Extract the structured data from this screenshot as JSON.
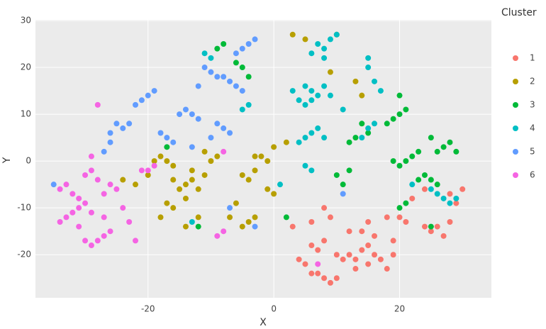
{
  "chart_data": {
    "type": "scatter",
    "x_label": "X",
    "y_label": "Y",
    "legend_title": "Cluster",
    "legend": "right",
    "grid": true,
    "xlim": [
      -37.9,
      34.6
    ],
    "ylim": [
      -29.2,
      30.15
    ],
    "xticks": [
      -20,
      0,
      20
    ],
    "yticks": [
      -20,
      -10,
      0,
      10,
      20,
      30
    ],
    "series": [
      {
        "name": "1",
        "color": "#F8766D",
        "x": [
          12,
          13,
          14,
          15,
          16,
          11,
          13,
          17,
          15,
          10,
          7,
          8,
          9,
          6,
          10,
          5,
          4,
          7,
          6,
          8,
          12,
          14,
          15,
          16,
          18,
          20,
          21,
          19,
          24,
          25,
          26,
          27,
          28,
          28,
          30,
          29,
          8,
          9,
          6,
          3,
          19,
          18,
          22,
          24
        ],
        "values": [
          -20,
          -21,
          -19,
          -22,
          -20,
          -21,
          -23,
          -21,
          -18,
          -20,
          -24,
          -25,
          -26,
          -24,
          -25,
          -22,
          -21,
          -19,
          -18,
          -17,
          -15,
          -15,
          -13,
          -16,
          -12,
          -12,
          -13,
          -17,
          -14,
          -15,
          -14,
          -16,
          -13,
          -7,
          -6,
          -9,
          -10,
          -12,
          -13,
          -14,
          -20,
          -23,
          -8,
          -6
        ]
      },
      {
        "name": "2",
        "color": "#B79F00",
        "x": [
          -14,
          -13,
          -15,
          -12,
          -14,
          -13,
          -16,
          -11,
          -17,
          -18,
          -16,
          -19,
          -10,
          -9,
          -11,
          -5,
          -4,
          -3,
          -2,
          -1,
          0,
          -3,
          -4,
          -3,
          -5,
          -7,
          -16,
          -17,
          -18,
          -14,
          -12,
          -22,
          -20,
          -24,
          0,
          -1,
          3,
          5,
          10,
          13,
          14,
          9,
          -6,
          2
        ],
        "values": [
          -5,
          -4,
          -6,
          -6,
          -8,
          -2,
          -4,
          -3,
          0,
          1,
          -1,
          0,
          0,
          1,
          2,
          -3,
          -4,
          -2,
          1,
          0,
          3,
          1,
          -13,
          -12,
          -14,
          -12,
          -10,
          -9,
          -12,
          -14,
          -12,
          -5,
          -3,
          -4,
          -7,
          -6,
          27,
          26,
          27,
          17,
          14,
          19,
          -9,
          4
        ]
      },
      {
        "name": "3",
        "color": "#00BA38",
        "x": [
          20,
          19,
          21,
          18,
          20,
          27,
          28,
          26,
          25,
          29,
          21,
          22,
          20,
          23,
          19,
          25,
          24,
          26,
          23,
          13,
          15,
          12,
          14,
          10,
          12,
          11,
          -8,
          -9,
          -6,
          -5,
          -4,
          20,
          21,
          25,
          -12,
          -17,
          2
        ],
        "values": [
          10,
          9,
          11,
          8,
          14,
          3,
          4,
          2,
          5,
          2,
          0,
          1,
          -1,
          2,
          0,
          -4,
          -3,
          -5,
          -4,
          5,
          6,
          4,
          8,
          -3,
          -2,
          -5,
          25,
          24,
          21,
          20,
          18,
          -10,
          -9,
          -14,
          -14,
          3,
          -12
        ]
      },
      {
        "name": "4",
        "color": "#00BFC4",
        "x": [
          6,
          5,
          7,
          4,
          8,
          6,
          3,
          9,
          5,
          7,
          8,
          9,
          6,
          10,
          8,
          15,
          16,
          15,
          17,
          6,
          5,
          7,
          8,
          4,
          15,
          14,
          16,
          27,
          26,
          28,
          25,
          29,
          22,
          -10,
          -11,
          -4,
          -5,
          5,
          6,
          -13,
          1,
          11
        ],
        "values": [
          15,
          16,
          14,
          13,
          16,
          13,
          15,
          14,
          12,
          25,
          24,
          26,
          23,
          27,
          22,
          20,
          17,
          22,
          15,
          6,
          5,
          7,
          5,
          4,
          7,
          5,
          8,
          -8,
          -7,
          -9,
          -6,
          -8,
          -5,
          22,
          23,
          12,
          11,
          -1,
          -2,
          -13,
          -5,
          11
        ]
      },
      {
        "name": "5",
        "color": "#619CFF",
        "x": [
          -13,
          -14,
          -12,
          -15,
          -20,
          -21,
          -19,
          -22,
          -8,
          -9,
          -7,
          -10,
          -6,
          -7,
          -5,
          -8,
          -10,
          -11,
          -9,
          -4,
          -5,
          -3,
          -6,
          -25,
          -24,
          -26,
          -17,
          -18,
          -16,
          -13,
          -26,
          -27,
          -23,
          -12,
          -7,
          -35,
          11,
          -3
        ],
        "values": [
          10,
          11,
          9,
          10,
          14,
          13,
          15,
          12,
          7,
          8,
          6,
          5,
          16,
          17,
          15,
          18,
          19,
          20,
          18,
          25,
          24,
          26,
          23,
          8,
          7,
          6,
          5,
          6,
          4,
          3,
          4,
          2,
          8,
          16,
          -10,
          -5,
          -7,
          -14
        ]
      },
      {
        "name": "6",
        "color": "#F564E3",
        "x": [
          -31,
          -32,
          -30,
          -33,
          -29,
          -31,
          -28,
          -29,
          -27,
          -30,
          -26,
          -34,
          -33,
          -32,
          -26,
          -27,
          -25,
          -30,
          -29,
          -28,
          -20,
          -21,
          -19,
          -8,
          -9,
          -24,
          -23,
          -27,
          -29,
          -28,
          -31,
          -34,
          7,
          -8,
          -22
        ],
        "values": [
          -10,
          -11,
          -9,
          -12,
          -11,
          -8,
          -17,
          -18,
          -16,
          -17,
          -15,
          -6,
          -5,
          -7,
          -5,
          -7,
          -6,
          -3,
          -2,
          -4,
          -2,
          -2,
          -1,
          -15,
          -16,
          -10,
          -13,
          -12,
          1,
          12,
          -14,
          -13,
          -22,
          2,
          -17
        ]
      }
    ]
  }
}
